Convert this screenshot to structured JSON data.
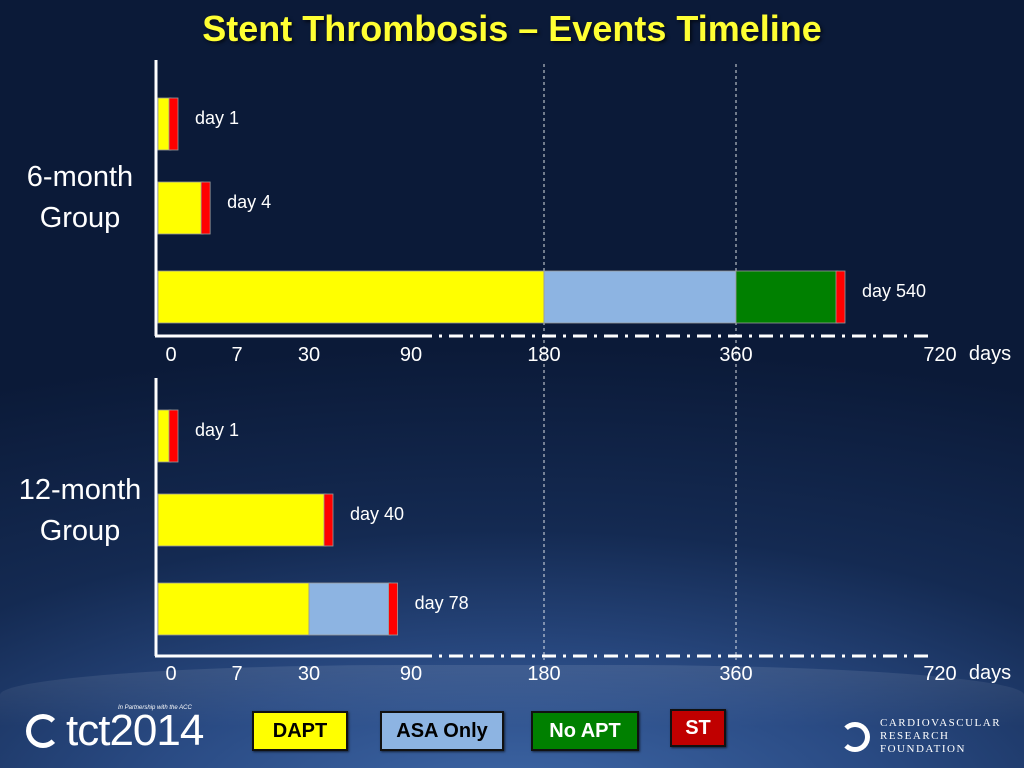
{
  "title": "Stent Thrombosis – Events Timeline",
  "colors": {
    "DAPT": "#ffff00",
    "ASA Only": "#8db4e2",
    "No APT": "#008000",
    "ST": "#ff0000"
  },
  "chart_data": {
    "type": "bar",
    "xlabel": "days",
    "x_ticks": [
      "0",
      "7",
      "30",
      "90",
      "180",
      "360",
      "720"
    ],
    "xlim": [
      0,
      720
    ],
    "groups": [
      {
        "name_lines": [
          "6-month",
          "Group"
        ],
        "rows": [
          {
            "label": "day 1",
            "event_day": 1,
            "segments": [
              {
                "type": "DAPT",
                "from": 0,
                "to": 1
              }
            ]
          },
          {
            "label": "day 4",
            "event_day": 4,
            "segments": [
              {
                "type": "DAPT",
                "from": 0,
                "to": 4
              }
            ]
          },
          {
            "label": "day 540",
            "event_day": 540,
            "segments": [
              {
                "type": "DAPT",
                "from": 0,
                "to": 180
              },
              {
                "type": "ASA Only",
                "from": 180,
                "to": 360
              },
              {
                "type": "No APT",
                "from": 360,
                "to": 540
              }
            ]
          }
        ]
      },
      {
        "name_lines": [
          "12-month",
          "Group"
        ],
        "rows": [
          {
            "label": "day 1",
            "event_day": 1,
            "segments": [
              {
                "type": "DAPT",
                "from": 0,
                "to": 1
              }
            ]
          },
          {
            "label": "day 40",
            "event_day": 40,
            "segments": [
              {
                "type": "DAPT",
                "from": 0,
                "to": 40
              }
            ]
          },
          {
            "label": "day 78",
            "event_day": 78,
            "segments": [
              {
                "type": "DAPT",
                "from": 0,
                "to": 30
              },
              {
                "type": "ASA Only",
                "from": 30,
                "to": 78
              }
            ]
          }
        ]
      }
    ],
    "reference_lines": [
      180,
      360
    ]
  },
  "legend": [
    {
      "label": "DAPT",
      "type": "DAPT"
    },
    {
      "label": "ASA Only",
      "type": "ASA Only"
    },
    {
      "label": "No APT",
      "type": "No APT"
    },
    {
      "label": "ST",
      "type": "ST"
    }
  ],
  "logos": {
    "tct": "tct2014",
    "tct_tagline": "In Partnership with the ACC",
    "crf_lines": [
      "CARDIOVASCULAR",
      "RESEARCH",
      "FOUNDATION"
    ]
  }
}
